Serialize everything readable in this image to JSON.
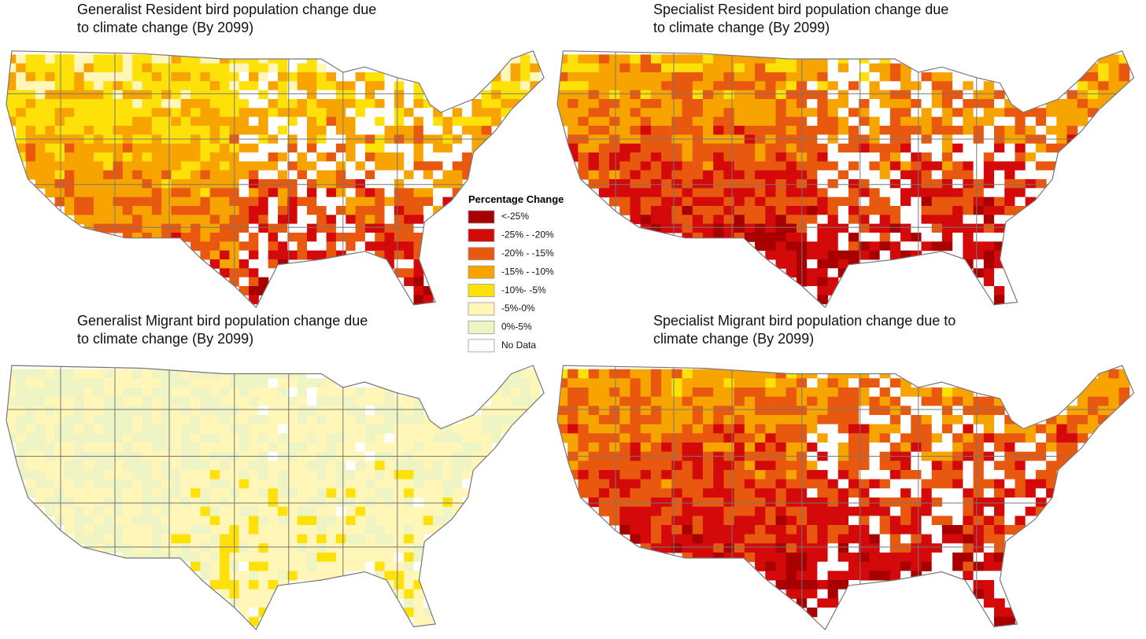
{
  "panels": [
    {
      "title_lines": [
        "Generalist Resident bird population change due",
        "to climate change (By 2099)"
      ]
    },
    {
      "title_lines": [
        "Specialist Resident bird population change due",
        "to climate change (By 2099)"
      ]
    },
    {
      "title_lines": [
        "Generalist Migrant bird population change due",
        "to climate change (By 2099)"
      ]
    },
    {
      "title_lines": [
        "Specialist Migrant bird population change due to",
        "climate change (By 2099)"
      ]
    }
  ],
  "legend": {
    "title": "Percentage Change",
    "items": [
      {
        "label": "<-25%",
        "color": "#a80000"
      },
      {
        "label": "-25% - -20%",
        "color": "#d40a0a"
      },
      {
        "label": "-20% - -15%",
        "color": "#e8580e"
      },
      {
        "label": "-15% - -10%",
        "color": "#f7a400"
      },
      {
        "label": "-10%- -5%",
        "color": "#ffe10a"
      },
      {
        "label": "-5%-0%",
        "color": "#fff6b8"
      },
      {
        "label": "0%-5%",
        "color": "#eef4c4"
      },
      {
        "label": "No Data",
        "color": "#ffffff"
      }
    ]
  }
}
